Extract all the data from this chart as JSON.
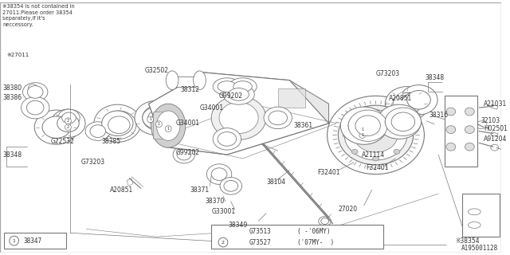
{
  "bg_color": "#ffffff",
  "border_color": "#aaaaaa",
  "line_color": "#777777",
  "text_color": "#333333",
  "title_note": "※38354 is not contained in\n27011.Please order 38354\nseparately,if it's\nneccessory.",
  "note_27011": "※27011",
  "diagram_id": "A195001128",
  "figsize": [
    6.4,
    3.2
  ],
  "dpi": 100
}
